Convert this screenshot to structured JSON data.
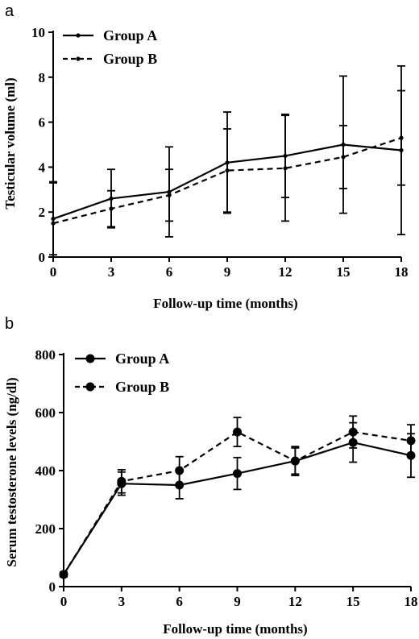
{
  "chart_data": [
    {
      "panel": "a",
      "type": "line",
      "xlabel": "Follow-up time (months)",
      "ylabel": "Testicular  volume (ml)",
      "x": [
        0,
        3,
        6,
        9,
        12,
        15,
        18
      ],
      "xlim": [
        0,
        18
      ],
      "ylim": [
        0,
        10
      ],
      "yticks": [
        0,
        2,
        4,
        6,
        8,
        10
      ],
      "legend": "top-left",
      "series": [
        {
          "name": "Group A",
          "style": "solid",
          "marker": "small",
          "values": [
            1.7,
            2.6,
            2.9,
            4.2,
            4.5,
            5.0,
            4.75
          ],
          "error": [
            1.6,
            1.3,
            2.0,
            2.25,
            1.85,
            3.05,
            3.75
          ]
        },
        {
          "name": "Group B",
          "style": "dashed",
          "marker": "small",
          "values": [
            1.5,
            2.15,
            2.75,
            3.85,
            3.95,
            4.45,
            5.3
          ],
          "error": [
            1.85,
            0.8,
            1.15,
            1.85,
            2.35,
            1.4,
            2.1
          ]
        }
      ]
    },
    {
      "panel": "b",
      "type": "line",
      "xlabel": "Follow-up time (months)",
      "ylabel": "Serum testosterone levels (ng/dl)",
      "x": [
        0,
        3,
        6,
        9,
        12,
        15,
        18
      ],
      "xlim": [
        0,
        18
      ],
      "ylim": [
        0,
        800
      ],
      "yticks": [
        0,
        200,
        400,
        600,
        800
      ],
      "legend": "top-left",
      "series": [
        {
          "name": "Group A",
          "style": "solid",
          "marker": "large",
          "values": [
            42,
            355,
            350,
            390,
            433,
            497,
            452
          ],
          "error": [
            8,
            40,
            47,
            55,
            50,
            68,
            75
          ]
        },
        {
          "name": "Group B",
          "style": "dashed",
          "marker": "large",
          "values": [
            42,
            363,
            400,
            533,
            433,
            533,
            503
          ],
          "error": [
            8,
            40,
            48,
            50,
            45,
            55,
            55
          ]
        }
      ]
    }
  ]
}
